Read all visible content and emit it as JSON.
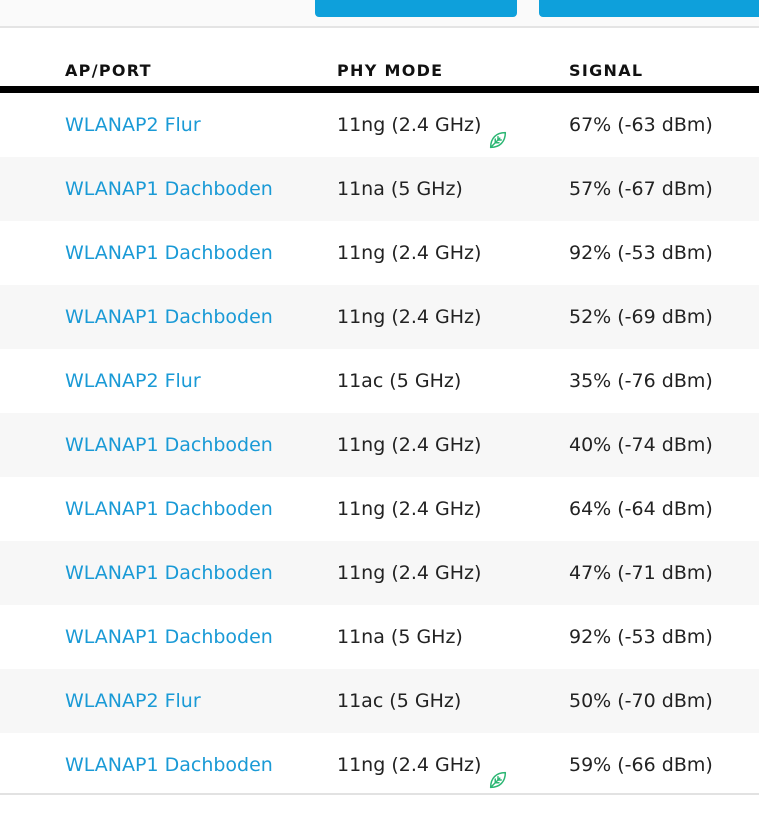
{
  "table": {
    "headers": {
      "ap_port": "AP/PORT",
      "phy_mode": "PHY MODE",
      "signal": "SIGNAL"
    },
    "rows": [
      {
        "ap": "WLANAP2 Flur",
        "phy": "11ng (2.4 GHz)",
        "signal": "67% (-63 dBm)",
        "eco_icon": true
      },
      {
        "ap": "WLANAP1 Dachboden",
        "phy": "11na (5 GHz)",
        "signal": "57% (-67 dBm)",
        "eco_icon": false
      },
      {
        "ap": "WLANAP1 Dachboden",
        "phy": "11ng (2.4 GHz)",
        "signal": "92% (-53 dBm)",
        "eco_icon": false
      },
      {
        "ap": "WLANAP1 Dachboden",
        "phy": "11ng (2.4 GHz)",
        "signal": "52% (-69 dBm)",
        "eco_icon": false
      },
      {
        "ap": "WLANAP2 Flur",
        "phy": "11ac (5 GHz)",
        "signal": "35% (-76 dBm)",
        "eco_icon": false
      },
      {
        "ap": "WLANAP1 Dachboden",
        "phy": "11ng (2.4 GHz)",
        "signal": "40% (-74 dBm)",
        "eco_icon": false
      },
      {
        "ap": "WLANAP1 Dachboden",
        "phy": "11ng (2.4 GHz)",
        "signal": "64% (-64 dBm)",
        "eco_icon": false
      },
      {
        "ap": "WLANAP1 Dachboden",
        "phy": "11ng (2.4 GHz)",
        "signal": "47% (-71 dBm)",
        "eco_icon": false
      },
      {
        "ap": "WLANAP1 Dachboden",
        "phy": "11na (5 GHz)",
        "signal": "92% (-53 dBm)",
        "eco_icon": false
      },
      {
        "ap": "WLANAP2 Flur",
        "phy": "11ac (5 GHz)",
        "signal": "50% (-70 dBm)",
        "eco_icon": false
      },
      {
        "ap": "WLANAP1 Dachboden",
        "phy": "11ng (2.4 GHz)",
        "signal": "59% (-66 dBm)",
        "eco_icon": true
      }
    ]
  },
  "icons": {
    "eco": "leaf-icon"
  },
  "colors": {
    "link": "#1a9ad6",
    "button": "#0ea0db",
    "leaf": "#2bb673",
    "stripe": "#f7f7f7"
  }
}
